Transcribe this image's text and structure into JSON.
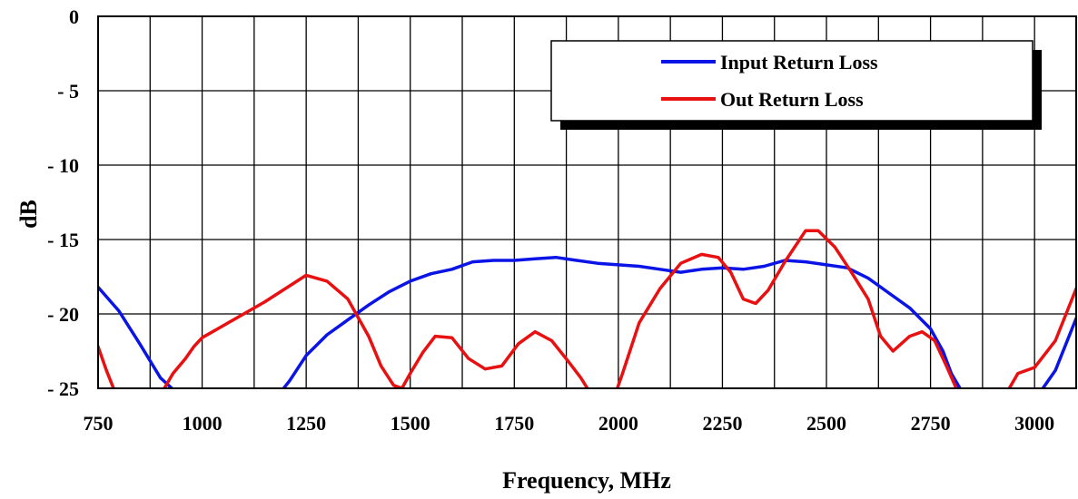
{
  "chart_data": {
    "type": "line",
    "xlabel": "Frequency, MHz",
    "ylabel": "dB",
    "xlim": [
      750,
      3100
    ],
    "ylim": [
      -25,
      0
    ],
    "xticks": [
      750,
      1000,
      1250,
      1500,
      1750,
      2000,
      2250,
      2500,
      2750,
      3000
    ],
    "yticks": [
      0,
      -5,
      -10,
      -15,
      -20,
      -25
    ],
    "ytick_labels": [
      "0",
      "- 5",
      "- 10",
      "- 15",
      "- 20",
      "- 25"
    ],
    "grid": true,
    "legend_position": "top-right",
    "series": [
      {
        "name": "Input Return Loss",
        "color": "#0a14e6",
        "points": [
          [
            750,
            -18.2
          ],
          [
            800,
            -19.8
          ],
          [
            850,
            -22.0
          ],
          [
            900,
            -24.3
          ],
          [
            935,
            -25.2
          ],
          [
            1190,
            -25.2
          ],
          [
            1210,
            -24.5
          ],
          [
            1250,
            -22.8
          ],
          [
            1300,
            -21.4
          ],
          [
            1350,
            -20.4
          ],
          [
            1400,
            -19.4
          ],
          [
            1450,
            -18.5
          ],
          [
            1500,
            -17.8
          ],
          [
            1550,
            -17.3
          ],
          [
            1600,
            -17.0
          ],
          [
            1650,
            -16.5
          ],
          [
            1700,
            -16.4
          ],
          [
            1750,
            -16.4
          ],
          [
            1800,
            -16.3
          ],
          [
            1850,
            -16.2
          ],
          [
            1900,
            -16.4
          ],
          [
            1950,
            -16.6
          ],
          [
            2000,
            -16.7
          ],
          [
            2050,
            -16.8
          ],
          [
            2100,
            -17.0
          ],
          [
            2150,
            -17.2
          ],
          [
            2200,
            -17.0
          ],
          [
            2250,
            -16.9
          ],
          [
            2300,
            -17.0
          ],
          [
            2350,
            -16.8
          ],
          [
            2400,
            -16.4
          ],
          [
            2450,
            -16.5
          ],
          [
            2500,
            -16.7
          ],
          [
            2550,
            -16.9
          ],
          [
            2600,
            -17.6
          ],
          [
            2650,
            -18.6
          ],
          [
            2700,
            -19.6
          ],
          [
            2750,
            -21.0
          ],
          [
            2780,
            -22.5
          ],
          [
            2800,
            -24.0
          ],
          [
            2825,
            -25.2
          ],
          [
            3015,
            -25.2
          ],
          [
            3050,
            -23.8
          ],
          [
            3100,
            -20.3
          ]
        ]
      },
      {
        "name": "Out Return Loss",
        "color": "#e81010",
        "points": [
          [
            750,
            -22.2
          ],
          [
            770,
            -23.8
          ],
          [
            790,
            -25.2
          ],
          [
            905,
            -25.2
          ],
          [
            930,
            -24.0
          ],
          [
            960,
            -23.0
          ],
          [
            980,
            -22.2
          ],
          [
            1000,
            -21.6
          ],
          [
            1050,
            -20.8
          ],
          [
            1100,
            -20.0
          ],
          [
            1150,
            -19.2
          ],
          [
            1200,
            -18.3
          ],
          [
            1250,
            -17.4
          ],
          [
            1300,
            -17.8
          ],
          [
            1350,
            -19.0
          ],
          [
            1400,
            -21.5
          ],
          [
            1430,
            -23.5
          ],
          [
            1460,
            -24.8
          ],
          [
            1480,
            -25.0
          ],
          [
            1500,
            -24.0
          ],
          [
            1530,
            -22.6
          ],
          [
            1560,
            -21.5
          ],
          [
            1600,
            -21.6
          ],
          [
            1640,
            -23.0
          ],
          [
            1680,
            -23.7
          ],
          [
            1720,
            -23.5
          ],
          [
            1760,
            -22.0
          ],
          [
            1800,
            -21.2
          ],
          [
            1840,
            -21.8
          ],
          [
            1880,
            -23.2
          ],
          [
            1910,
            -24.3
          ],
          [
            1930,
            -25.2
          ],
          [
            1995,
            -25.2
          ],
          [
            2010,
            -24.0
          ],
          [
            2050,
            -20.6
          ],
          [
            2100,
            -18.3
          ],
          [
            2150,
            -16.6
          ],
          [
            2200,
            -16.0
          ],
          [
            2240,
            -16.2
          ],
          [
            2270,
            -17.2
          ],
          [
            2300,
            -19.0
          ],
          [
            2330,
            -19.3
          ],
          [
            2360,
            -18.4
          ],
          [
            2400,
            -16.5
          ],
          [
            2450,
            -14.4
          ],
          [
            2480,
            -14.4
          ],
          [
            2520,
            -15.5
          ],
          [
            2560,
            -17.2
          ],
          [
            2600,
            -19.0
          ],
          [
            2630,
            -21.5
          ],
          [
            2660,
            -22.5
          ],
          [
            2700,
            -21.5
          ],
          [
            2730,
            -21.2
          ],
          [
            2760,
            -21.8
          ],
          [
            2790,
            -23.6
          ],
          [
            2815,
            -25.2
          ],
          [
            2935,
            -25.2
          ],
          [
            2960,
            -24.0
          ],
          [
            3000,
            -23.6
          ],
          [
            3050,
            -21.8
          ],
          [
            3100,
            -18.3
          ]
        ]
      }
    ]
  }
}
